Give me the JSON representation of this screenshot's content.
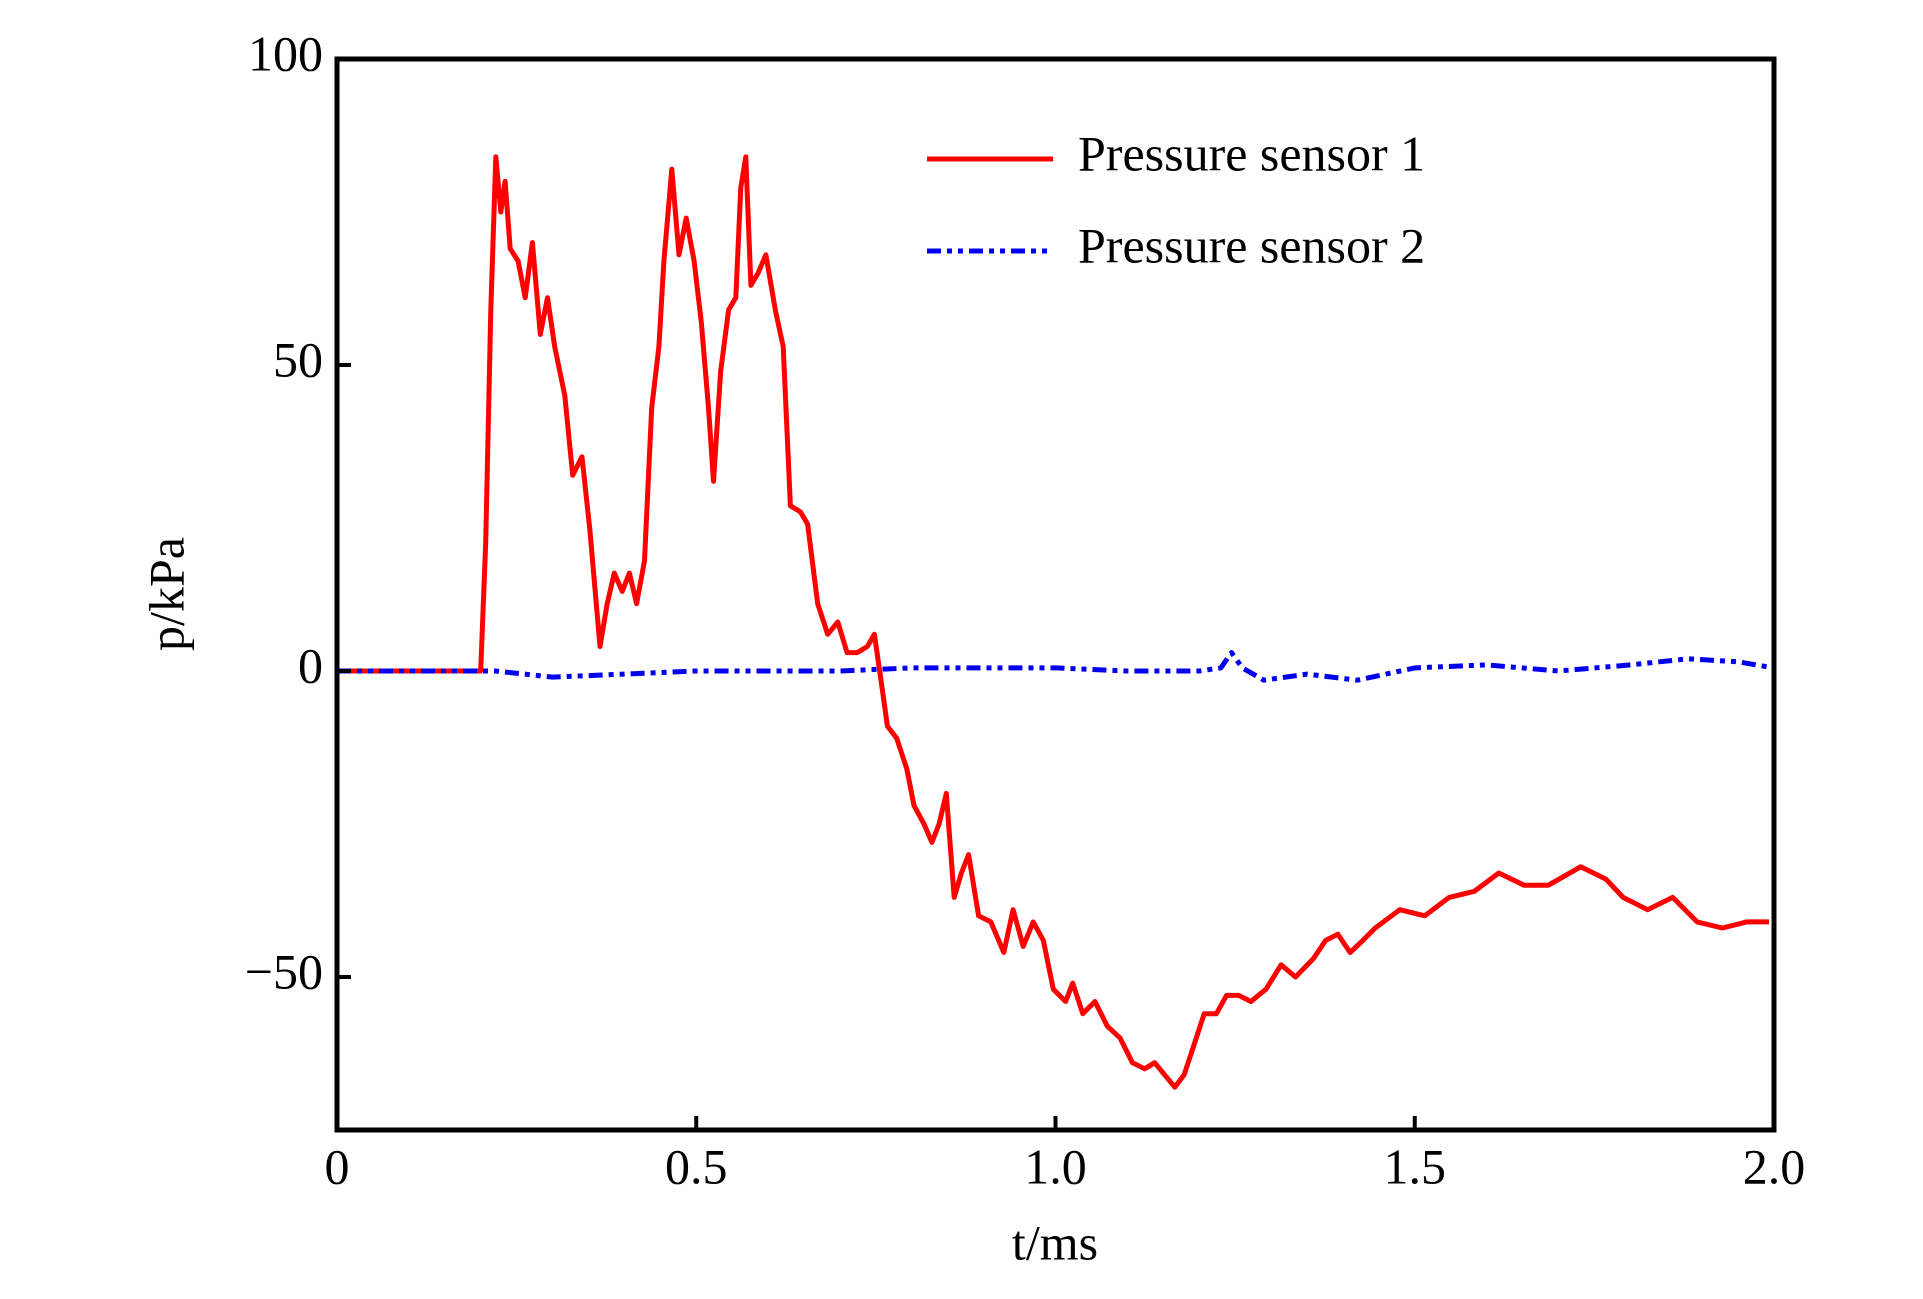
{
  "chart_data": {
    "type": "line",
    "xlabel": "t/ms",
    "ylabel": "p/kPa",
    "xlim": [
      0,
      2.0
    ],
    "ylim": [
      -75,
      100
    ],
    "xticks": [
      0,
      0.5,
      {
        "value": 1,
        "label": "1.0"
      },
      1.5,
      {
        "value": 2,
        "label": "2.0"
      }
    ],
    "yticks": [
      {
        "value": -50,
        "label": "−50"
      },
      0,
      50,
      100
    ],
    "legend": "upper right",
    "series": [
      {
        "name": "Pressure sensor 1",
        "color": "#ff0000",
        "style": "solid",
        "x": [
          0,
          0.2,
          0.207,
          0.214,
          0.221,
          0.228,
          0.234,
          0.241,
          0.252,
          0.262,
          0.272,
          0.283,
          0.293,
          0.303,
          0.317,
          0.328,
          0.341,
          0.352,
          0.366,
          0.376,
          0.386,
          0.397,
          0.407,
          0.417,
          0.428,
          0.438,
          0.448,
          0.455,
          0.466,
          0.476,
          0.486,
          0.497,
          0.507,
          0.517,
          0.524,
          0.534,
          0.545,
          0.555,
          0.562,
          0.569,
          0.576,
          0.586,
          0.597,
          0.61,
          0.621,
          0.631,
          0.645,
          0.655,
          0.669,
          0.683,
          0.697,
          0.71,
          0.724,
          0.738,
          0.748,
          0.759,
          0.766,
          0.779,
          0.793,
          0.803,
          0.817,
          0.828,
          0.838,
          0.848,
          0.859,
          0.869,
          0.879,
          0.893,
          0.91,
          0.928,
          0.941,
          0.955,
          0.969,
          0.983,
          0.997,
          1.014,
          1.024,
          1.038,
          1.055,
          1.072,
          1.09,
          1.107,
          1.124,
          1.138,
          1.152,
          1.166,
          1.179,
          1.193,
          1.207,
          1.224,
          1.238,
          1.255,
          1.272,
          1.293,
          1.314,
          1.334,
          1.359,
          1.376,
          1.393,
          1.41,
          1.428,
          1.445,
          1.479,
          1.514,
          1.548,
          1.583,
          1.617,
          1.652,
          1.686,
          1.731,
          1.766,
          1.79,
          1.824,
          1.859,
          1.893,
          1.928,
          1.962,
          1.993
        ],
        "values": [
          0,
          0,
          21,
          59,
          84,
          75,
          80,
          69,
          67,
          61,
          70,
          55,
          61,
          53,
          45,
          32,
          35,
          23,
          4,
          11,
          16,
          13,
          16,
          11,
          18,
          43,
          53,
          67,
          82,
          68,
          74,
          67,
          57,
          43,
          31,
          49,
          59,
          61,
          79,
          84,
          63,
          65,
          68,
          59,
          53,
          27,
          26,
          24,
          11,
          6,
          8,
          3,
          3,
          4,
          6,
          -3,
          -9,
          -11,
          -16,
          -22,
          -25,
          -28,
          -25,
          -20,
          -37,
          -33,
          -30,
          -40,
          -41,
          -46,
          -39,
          -45,
          -41,
          -44,
          -52,
          -54,
          -51,
          -56,
          -54,
          -58,
          -60,
          -64,
          -65,
          -64,
          -66,
          -68,
          -66,
          -61,
          -56,
          -56,
          -53,
          -53,
          -54,
          -52,
          -48,
          -50,
          -47,
          -44,
          -43,
          -46,
          -44,
          -42,
          -39,
          -40,
          -37,
          -36,
          -33,
          -35,
          -35,
          -32,
          -34,
          -37,
          -39,
          -37,
          -41,
          -42,
          -41,
          -41
        ]
      },
      {
        "name": "Pressure sensor 2",
        "color": "#0000ee",
        "style": "dashdotdot",
        "x": [
          0,
          0.2,
          0.22,
          0.3,
          0.4,
          0.5,
          0.6,
          0.7,
          0.8,
          0.9,
          1.0,
          1.1,
          1.2,
          1.23,
          1.245,
          1.26,
          1.29,
          1.35,
          1.42,
          1.5,
          1.6,
          1.7,
          1.8,
          1.88,
          1.95,
          2.0
        ],
        "values": [
          0,
          0,
          0,
          -1,
          -0.5,
          0,
          0,
          0,
          0.5,
          0.5,
          0.5,
          0,
          0,
          0.5,
          3,
          0.5,
          -1.5,
          -0.5,
          -1.5,
          0.5,
          1,
          0,
          1,
          2,
          1.5,
          0.5
        ]
      }
    ]
  }
}
